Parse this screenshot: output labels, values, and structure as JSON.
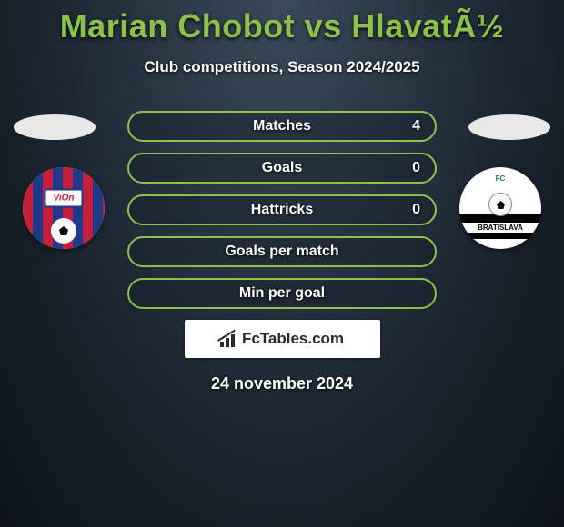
{
  "title": "Marian Chobot vs HlavatÃ½",
  "subtitle": "Club competitions, Season 2024/2025",
  "badges": {
    "left_label": "ViOn",
    "right_top": "FC",
    "right_bottom": "BRATISLAVA"
  },
  "stats": [
    {
      "label": "Matches",
      "value": "4"
    },
    {
      "label": "Goals",
      "value": "0"
    },
    {
      "label": "Hattricks",
      "value": "0"
    },
    {
      "label": "Goals per match",
      "value": ""
    },
    {
      "label": "Min per goal",
      "value": ""
    }
  ],
  "brand": "FcTables.com",
  "date": "24 november 2024",
  "colors": {
    "accent": "#8bc34a",
    "bg_outer": "#0d1318",
    "bg_inner": "#3a4a5a",
    "text": "#ffffff",
    "club_left_red": "#c41e3a",
    "club_left_blue": "#1e3a8a",
    "club_right_green": "#2a7a3a"
  }
}
